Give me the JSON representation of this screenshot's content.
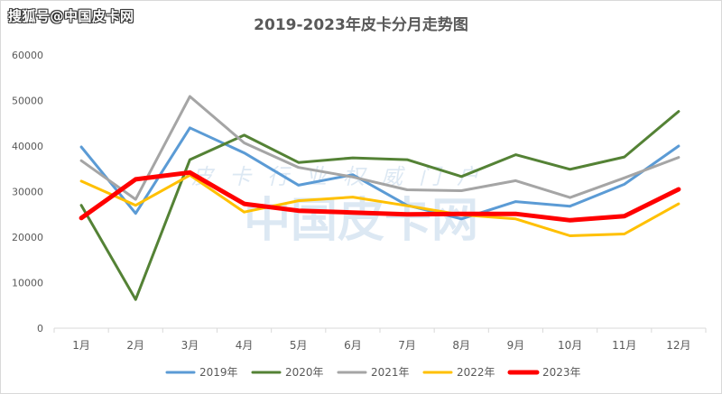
{
  "watermark": {
    "corner_text": "搜狐号@中国皮卡网",
    "center_small": "皮卡行业权威门户",
    "center_large": "中国皮卡网"
  },
  "chart_data": {
    "type": "line",
    "title": "2019-2023年皮卡分月走势图",
    "xlabel": "",
    "ylabel": "",
    "categories": [
      "1月",
      "2月",
      "3月",
      "4月",
      "5月",
      "6月",
      "7月",
      "8月",
      "9月",
      "10月",
      "11月",
      "12月"
    ],
    "ylim": [
      0,
      60000
    ],
    "yticks": [
      0,
      10000,
      20000,
      30000,
      40000,
      50000,
      60000
    ],
    "grid": false,
    "legend_position": "bottom",
    "series": [
      {
        "name": "2019年",
        "color": "#5b9bd5",
        "width": 3,
        "values": [
          39800,
          25200,
          44000,
          38500,
          31400,
          33700,
          27000,
          24000,
          27800,
          26800,
          31600,
          40000
        ]
      },
      {
        "name": "2020年",
        "color": "#548235",
        "width": 3,
        "values": [
          27000,
          6300,
          37000,
          42400,
          36400,
          37400,
          37000,
          33300,
          38100,
          34900,
          37600,
          47600
        ]
      },
      {
        "name": "2021年",
        "color": "#a5a5a5",
        "width": 3,
        "values": [
          36800,
          28300,
          50900,
          40700,
          35300,
          33200,
          30400,
          30200,
          32400,
          28700,
          33000,
          37500
        ]
      },
      {
        "name": "2022年",
        "color": "#ffc000",
        "width": 3,
        "values": [
          32300,
          27000,
          33600,
          25500,
          28000,
          28800,
          26900,
          24900,
          24000,
          20300,
          20700,
          27300
        ]
      },
      {
        "name": "2023年",
        "color": "#ff0000",
        "width": 5,
        "values": [
          24200,
          32700,
          34200,
          27300,
          25800,
          25400,
          25000,
          25100,
          25100,
          23700,
          24600,
          30500
        ]
      }
    ]
  }
}
